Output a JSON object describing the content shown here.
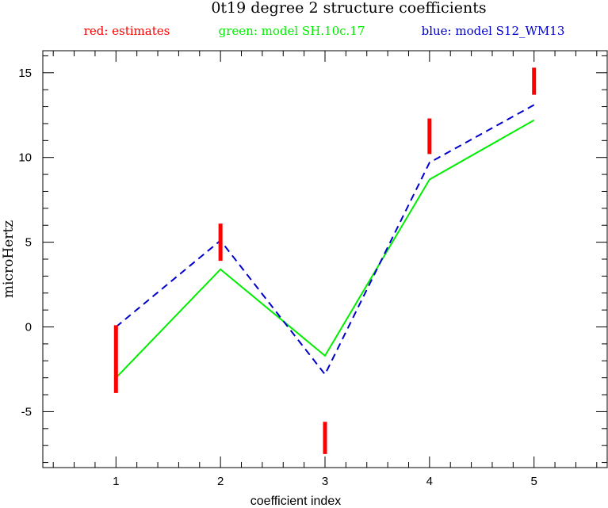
{
  "chart_data": {
    "type": "line",
    "title": "0t19 degree 2 structure coefficients",
    "xlabel": "coefficient index",
    "ylabel": "microHertz",
    "xlim": [
      0.3,
      5.7
    ],
    "ylim": [
      -8.3,
      16.3
    ],
    "x_ticks": [
      1,
      2,
      3,
      4,
      5
    ],
    "y_ticks": [
      -5,
      0,
      5,
      10,
      15
    ],
    "grid": false,
    "legend_placement": "top",
    "legend": [
      {
        "text": "red: estimates",
        "color": "#ff0000"
      },
      {
        "text": "green: model SH.10c.17",
        "color": "#00ee00"
      },
      {
        "text": "blue: model S12_WM13",
        "color": "#0000cc"
      }
    ],
    "estimates": {
      "name": "estimates",
      "color": "#ff0000",
      "x": [
        1,
        2,
        3,
        4,
        5
      ],
      "low": [
        -3.9,
        3.9,
        -7.5,
        10.2,
        13.7
      ],
      "high": [
        0.1,
        6.1,
        -5.6,
        12.3,
        15.3
      ]
    },
    "series": [
      {
        "name": "model SH.10c.17",
        "color": "#00ee00",
        "dash": false,
        "x": [
          1,
          2,
          3,
          4,
          5
        ],
        "values": [
          -3.0,
          3.4,
          -1.7,
          8.7,
          12.2
        ]
      },
      {
        "name": "model S12_WM13",
        "color": "#0000cc",
        "dash": true,
        "x": [
          1,
          2,
          3,
          4,
          5
        ],
        "values": [
          0.0,
          5.1,
          -2.8,
          9.7,
          13.1
        ]
      }
    ]
  }
}
